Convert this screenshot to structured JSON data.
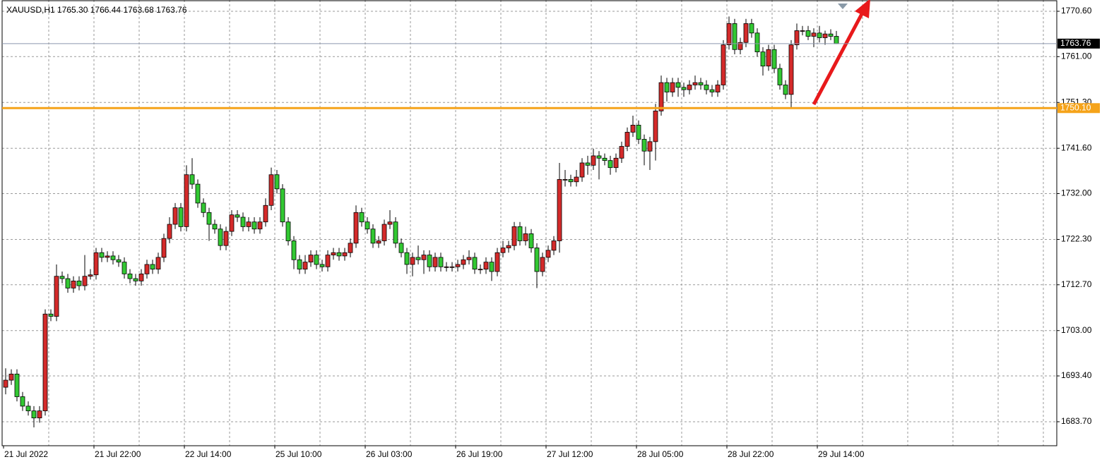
{
  "chart_data": {
    "type": "candlestick",
    "title": "XAUUSD,H1  1765.30 1766.44 1763.68 1763.76",
    "bull_color": "#d42a2a",
    "bear_color": "#32c832",
    "ylim": [
      1678.62,
      1772.99
    ],
    "yticks": [
      {
        "value": 1770.6,
        "label": "1770.60"
      },
      {
        "value": 1761,
        "label": "1761.00"
      },
      {
        "value": 1751.3,
        "label": "1751.30"
      },
      {
        "value": 1741.6,
        "label": "1741.60"
      },
      {
        "value": 1732,
        "label": "1732.00"
      },
      {
        "value": 1722.3,
        "label": "1722.30"
      },
      {
        "value": 1712.7,
        "label": "1712.70"
      },
      {
        "value": 1703,
        "label": "1703.00"
      },
      {
        "value": 1693.4,
        "label": "1693.40"
      },
      {
        "value": 1683.7,
        "label": "1683.70"
      }
    ],
    "grid": true,
    "hline": {
      "value": 1750.1,
      "label": "1750.10",
      "color": "#f5a31a"
    },
    "last_price": 1763.76,
    "categories": [
      "21 Jul 2022",
      null,
      null,
      null,
      null,
      null,
      null,
      null,
      null,
      null,
      null,
      null,
      null,
      null,
      null,
      null,
      "21 Jul 22:00",
      null,
      null,
      null,
      null,
      null,
      null,
      null,
      null,
      null,
      null,
      null,
      null,
      null,
      null,
      null,
      "22 Jul 14:00",
      null,
      null,
      null,
      null,
      null,
      null,
      null,
      null,
      null,
      null,
      null,
      null,
      null,
      null,
      null,
      "25 Jul 10:00",
      null,
      null,
      null,
      null,
      null,
      null,
      null,
      null,
      null,
      null,
      null,
      null,
      null,
      null,
      null,
      "26 Jul 03:00",
      null,
      null,
      null,
      null,
      null,
      null,
      null,
      null,
      null,
      null,
      null,
      null,
      null,
      null,
      null,
      "26 Jul 19:00",
      null,
      null,
      null,
      null,
      null,
      null,
      null,
      null,
      null,
      null,
      null,
      null,
      null,
      null,
      null,
      "27 Jul 12:00",
      null,
      null,
      null,
      null,
      null,
      null,
      null,
      null,
      null,
      null,
      null,
      null,
      null,
      null,
      null,
      "28 Jul 05:00",
      null,
      null,
      null,
      null,
      null,
      null,
      null,
      null,
      null,
      null,
      null,
      null,
      null,
      null,
      null,
      "28 Jul 22:00",
      null,
      null,
      null,
      null,
      null,
      null,
      null,
      null,
      null,
      null,
      null,
      null,
      null,
      null,
      null,
      "29 Jul 14:00",
      null,
      null,
      null
    ],
    "ohlc": [
      [
        1691,
        1695,
        1689.5,
        1692.5
      ],
      [
        1692.5,
        1694.8,
        1691.5,
        1693.8
      ],
      [
        1693.8,
        1694.8,
        1688,
        1689
      ],
      [
        1689,
        1690,
        1686,
        1687
      ],
      [
        1687,
        1688,
        1685,
        1686
      ],
      [
        1686,
        1687,
        1682.5,
        1684.5
      ],
      [
        1684.5,
        1687,
        1683.5,
        1686
      ],
      [
        1686,
        1707.5,
        1685,
        1706.5
      ],
      [
        1706.5,
        1707.5,
        1705,
        1706
      ],
      [
        1706,
        1717,
        1705,
        1714.5
      ],
      [
        1714.5,
        1715.5,
        1713,
        1714
      ],
      [
        1714,
        1715,
        1711,
        1712
      ],
      [
        1712,
        1714.5,
        1711,
        1713.5
      ],
      [
        1713.5,
        1714.5,
        1711.5,
        1712.5
      ],
      [
        1712.5,
        1719,
        1711.5,
        1714.5
      ],
      [
        1714.5,
        1716,
        1713.8,
        1714.8
      ],
      [
        1714.8,
        1720.5,
        1713.8,
        1719.5
      ],
      [
        1719.5,
        1720.5,
        1717.5,
        1718.5
      ],
      [
        1718.5,
        1719.8,
        1717.5,
        1718.8
      ],
      [
        1718.8,
        1719.8,
        1717,
        1718
      ],
      [
        1718,
        1719,
        1716.5,
        1717.5
      ],
      [
        1717.5,
        1718.5,
        1714,
        1715
      ],
      [
        1715,
        1716,
        1713,
        1714
      ],
      [
        1714,
        1715,
        1712.5,
        1713.5
      ],
      [
        1713.5,
        1716,
        1712.5,
        1715
      ],
      [
        1715,
        1718,
        1714,
        1717
      ],
      [
        1717,
        1718,
        1715,
        1716
      ],
      [
        1716,
        1719.5,
        1715,
        1718.5
      ],
      [
        1718.5,
        1723.5,
        1717.5,
        1722.5
      ],
      [
        1722.5,
        1727,
        1721.5,
        1725.5
      ],
      [
        1725.5,
        1730,
        1724.5,
        1729
      ],
      [
        1729,
        1730,
        1724,
        1725
      ],
      [
        1725,
        1738,
        1724,
        1736
      ],
      [
        1736,
        1739.5,
        1733,
        1734
      ],
      [
        1734,
        1735,
        1729,
        1730
      ],
      [
        1730,
        1731,
        1727,
        1728
      ],
      [
        1728,
        1729,
        1722,
        1725.5
      ],
      [
        1725.5,
        1726.5,
        1723.5,
        1724.5
      ],
      [
        1724.5,
        1725.5,
        1720,
        1721
      ],
      [
        1721,
        1725,
        1720,
        1724
      ],
      [
        1724,
        1728.5,
        1723,
        1727.5
      ],
      [
        1727.5,
        1728.5,
        1726,
        1727
      ],
      [
        1727,
        1728,
        1724,
        1725
      ],
      [
        1725,
        1727,
        1724,
        1726
      ],
      [
        1726,
        1727,
        1723.5,
        1724.5
      ],
      [
        1724.5,
        1727,
        1723.5,
        1726
      ],
      [
        1726,
        1731,
        1725,
        1729.5
      ],
      [
        1729.5,
        1737.5,
        1728.5,
        1736
      ],
      [
        1736,
        1737,
        1732,
        1733
      ],
      [
        1733,
        1734,
        1725,
        1726
      ],
      [
        1726,
        1727,
        1721,
        1722
      ],
      [
        1722,
        1723,
        1716,
        1718
      ],
      [
        1718,
        1719,
        1715,
        1716
      ],
      [
        1716,
        1719,
        1715,
        1717.5
      ],
      [
        1717.5,
        1720,
        1716.5,
        1719
      ],
      [
        1719,
        1720,
        1716,
        1717
      ],
      [
        1717,
        1718,
        1715.5,
        1716.5
      ],
      [
        1716.5,
        1720,
        1715.5,
        1719
      ],
      [
        1719,
        1720.5,
        1718,
        1719.5
      ],
      [
        1719.5,
        1720.5,
        1717.8,
        1718.8
      ],
      [
        1718.8,
        1720.5,
        1717.8,
        1719.5
      ],
      [
        1719.5,
        1722.5,
        1718.5,
        1721.5
      ],
      [
        1721.5,
        1729.5,
        1720.5,
        1728
      ],
      [
        1728,
        1729,
        1725,
        1726
      ],
      [
        1726,
        1727,
        1723.5,
        1724.5
      ],
      [
        1724.5,
        1725.5,
        1720.5,
        1721.5
      ],
      [
        1721.5,
        1723,
        1720.5,
        1722
      ],
      [
        1722,
        1726.5,
        1721,
        1725.5
      ],
      [
        1725.5,
        1728.5,
        1724.5,
        1726
      ],
      [
        1726,
        1727,
        1720.5,
        1721.5
      ],
      [
        1721.5,
        1722.5,
        1718.5,
        1719.5
      ],
      [
        1719.5,
        1720.5,
        1715,
        1717
      ],
      [
        1717,
        1719.5,
        1714.5,
        1718.5
      ],
      [
        1718.5,
        1721,
        1717,
        1718
      ],
      [
        1718,
        1720,
        1715,
        1719
      ],
      [
        1719,
        1720,
        1715.5,
        1716.5
      ],
      [
        1716.5,
        1719.5,
        1715.5,
        1718.5
      ],
      [
        1718.5,
        1719.5,
        1715.5,
        1716.5
      ],
      [
        1716.5,
        1717.5,
        1715.5,
        1716.5
      ],
      [
        1716.5,
        1717.5,
        1715.5,
        1716.5
      ],
      [
        1716.5,
        1718,
        1715.5,
        1717
      ],
      [
        1717,
        1719,
        1716,
        1718
      ],
      [
        1718,
        1720,
        1717,
        1718.5
      ],
      [
        1718.5,
        1719.5,
        1715,
        1716
      ],
      [
        1716,
        1717,
        1715,
        1716
      ],
      [
        1716,
        1718.5,
        1715,
        1717.5
      ],
      [
        1717.5,
        1718.5,
        1713.5,
        1715.5
      ],
      [
        1715.5,
        1720.5,
        1714.5,
        1719.5
      ],
      [
        1719.5,
        1722,
        1718.5,
        1720.5
      ],
      [
        1720.5,
        1722,
        1719.5,
        1721
      ],
      [
        1721,
        1726,
        1720,
        1725
      ],
      [
        1725,
        1726,
        1721,
        1722
      ],
      [
        1722,
        1725,
        1721,
        1723.5
      ],
      [
        1723.5,
        1724.5,
        1719.5,
        1720.5
      ],
      [
        1720.5,
        1721.5,
        1712,
        1715.5
      ],
      [
        1715.5,
        1719.5,
        1714.5,
        1718.5
      ],
      [
        1718.5,
        1721,
        1717.5,
        1720
      ],
      [
        1720,
        1723,
        1719,
        1722
      ],
      [
        1722,
        1738.5,
        1719.5,
        1735
      ],
      [
        1735,
        1737,
        1733.5,
        1735
      ],
      [
        1735,
        1736,
        1733.5,
        1734.5
      ],
      [
        1734.5,
        1737,
        1733.5,
        1735.5
      ],
      [
        1735.5,
        1739.5,
        1734.5,
        1738.5
      ],
      [
        1738.5,
        1740,
        1736,
        1738
      ],
      [
        1738,
        1741.5,
        1737,
        1740
      ],
      [
        1740,
        1741,
        1735,
        1739.5
      ],
      [
        1739.5,
        1740.5,
        1738,
        1739
      ],
      [
        1739,
        1740,
        1736,
        1737.5
      ],
      [
        1737.5,
        1740.5,
        1736.5,
        1739.5
      ],
      [
        1739.5,
        1743,
        1738.5,
        1742
      ],
      [
        1742,
        1746,
        1741,
        1745
      ],
      [
        1745,
        1748.5,
        1744,
        1746.5
      ],
      [
        1746.5,
        1747.5,
        1742.5,
        1743.5
      ],
      [
        1743.5,
        1744.5,
        1738,
        1741
      ],
      [
        1741,
        1744,
        1737,
        1743
      ],
      [
        1743,
        1751,
        1739,
        1749.5
      ],
      [
        1749.5,
        1757,
        1748.5,
        1755.5
      ],
      [
        1755.5,
        1756.5,
        1751.5,
        1753.5
      ],
      [
        1753.5,
        1756.5,
        1752.5,
        1755.5
      ],
      [
        1755.5,
        1756.5,
        1752.5,
        1754.5
      ],
      [
        1754.5,
        1755.5,
        1752.5,
        1754
      ],
      [
        1754,
        1756,
        1753,
        1755
      ],
      [
        1755,
        1757,
        1754,
        1755.5
      ],
      [
        1755.5,
        1756.5,
        1754,
        1755
      ],
      [
        1755,
        1756,
        1753,
        1754
      ],
      [
        1754,
        1755,
        1752.5,
        1753.5
      ],
      [
        1753.5,
        1756,
        1752.5,
        1755
      ],
      [
        1755,
        1764.5,
        1754,
        1763.5
      ],
      [
        1763.5,
        1769.5,
        1762.5,
        1768
      ],
      [
        1768,
        1769,
        1761.5,
        1762.5
      ],
      [
        1762.5,
        1765,
        1761.5,
        1764
      ],
      [
        1764,
        1769,
        1763,
        1768
      ],
      [
        1768,
        1769,
        1765,
        1766
      ],
      [
        1766,
        1767,
        1761,
        1762
      ],
      [
        1762,
        1763,
        1757,
        1759
      ],
      [
        1759,
        1763.5,
        1758,
        1762.5
      ],
      [
        1762.5,
        1763.5,
        1757.5,
        1758.5
      ],
      [
        1758.5,
        1759.5,
        1754,
        1755
      ],
      [
        1755,
        1756,
        1752,
        1753
      ],
      [
        1753,
        1764.5,
        1750.1,
        1763.5
      ],
      [
        1763.5,
        1768,
        1762.5,
        1766.5
      ],
      [
        1766.5,
        1767.5,
        1765.5,
        1766.5
      ],
      [
        1766.5,
        1767.5,
        1764.5,
        1765.3
      ],
      [
        1765.3,
        1767,
        1763,
        1766
      ],
      [
        1766,
        1767.5,
        1764,
        1765
      ],
      [
        1765,
        1766.5,
        1763.5,
        1765.8
      ],
      [
        1765.8,
        1766.8,
        1764.5,
        1765.3
      ],
      [
        1765.3,
        1766.44,
        1763.68,
        1763.76
      ]
    ]
  }
}
